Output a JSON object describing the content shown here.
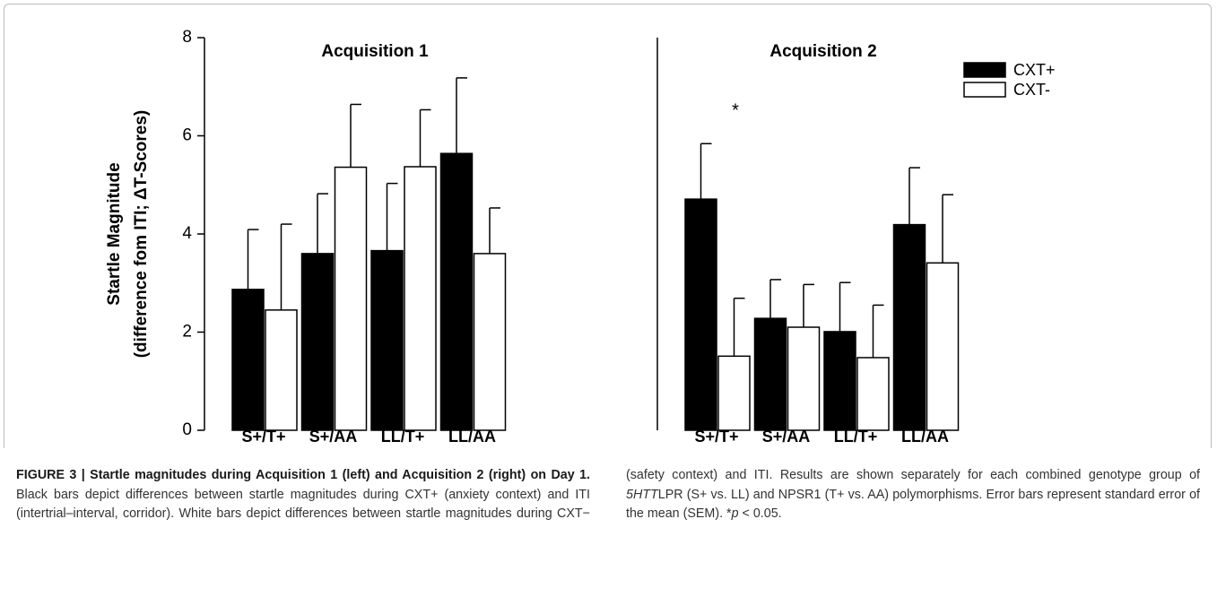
{
  "chart_data": {
    "type": "bar",
    "ylabel": [
      "Startle Magnitude",
      "(difference fom ITI; ΔT-Scores)"
    ],
    "panels": [
      "Acquisition 1",
      "Acquisition 2"
    ],
    "categories": [
      "S+/T+",
      "S+/AA",
      "LL/T+",
      "LL/AA",
      "S+/T+",
      "S+/AA",
      "LL/T+",
      "LL/AA"
    ],
    "series": [
      {
        "name": "CXT+",
        "color": "#000000",
        "values": [
          2.87,
          3.6,
          3.66,
          5.64,
          4.71,
          2.28,
          2.01,
          4.19
        ],
        "errors": [
          1.22,
          1.22,
          1.37,
          1.54,
          1.13,
          0.79,
          1.0,
          1.16
        ]
      },
      {
        "name": "CXT-",
        "color": "#ffffff",
        "values": [
          2.45,
          5.36,
          5.37,
          3.6,
          1.51,
          2.1,
          1.48,
          3.41
        ],
        "errors": [
          1.75,
          1.28,
          1.16,
          0.93,
          1.18,
          0.87,
          1.07,
          1.39
        ]
      }
    ],
    "annotations": [
      "*"
    ],
    "ylim": [
      0,
      8
    ],
    "yticks": [
      0,
      2,
      4,
      6,
      8
    ],
    "legend": "upper right"
  },
  "caption": [
    {
      "text": "FIGURE 3 | Startle magnitudes during Acquisition 1 (left) and Acquisition 2 (right) on Day 1.",
      "bold": true
    },
    {
      "text": " Black bars depict differences between startle magnitudes during CXT+ (anxiety context) and ITI (intertrial–interval, corridor). White bars depict differences between startle magnitudes during CXT− (safety context) and ITI. Results are shown separately for each combined genotype group of "
    },
    {
      "text": "5HTT",
      "italic": true
    },
    {
      "text": "LPR (S+ vs. LL) and NPSR1 (T+ vs. AA) polymorphisms. Error bars represent standard error of the mean (SEM). *"
    },
    {
      "text": "p",
      "italic": true
    },
    {
      "text": " < 0.05."
    }
  ]
}
